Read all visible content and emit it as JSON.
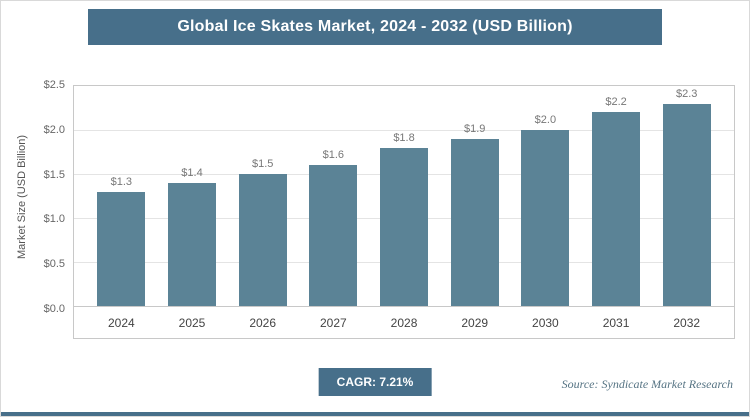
{
  "header": {
    "title": "Global Ice Skates Market, 2024 - 2032 (USD Billion)"
  },
  "chart_data": {
    "type": "bar",
    "title": "Global Ice Skates Market, 2024 - 2032 (USD Billion)",
    "categories": [
      "2024",
      "2025",
      "2026",
      "2027",
      "2028",
      "2029",
      "2030",
      "2031",
      "2032"
    ],
    "values": [
      1.3,
      1.4,
      1.5,
      1.6,
      1.8,
      1.9,
      2.0,
      2.2,
      2.3
    ],
    "value_labels": [
      "$1.3",
      "$1.4",
      "$1.5",
      "$1.6",
      "$1.8",
      "$1.9",
      "$2.0",
      "$2.2",
      "$2.3"
    ],
    "xlabel": "",
    "ylabel": "Market Size (USD Billion)",
    "ylim": [
      0,
      2.5
    ],
    "yticks": [
      0.0,
      0.5,
      1.0,
      1.5,
      2.0,
      2.5
    ],
    "ytick_labels": [
      "$0.0",
      "$0.5",
      "$1.0",
      "$1.5",
      "$2.0",
      "$2.5"
    ],
    "grid": true,
    "legend": false
  },
  "footer": {
    "cagr_label": "CAGR: 7.21%",
    "source": "Source: Syndicate Market Research"
  },
  "colors": {
    "accent": "#476f8a",
    "bar": "#5b8396",
    "grid": "#e4e4e4",
    "plot_border": "#c8c8c8",
    "label_text": "#777777"
  }
}
